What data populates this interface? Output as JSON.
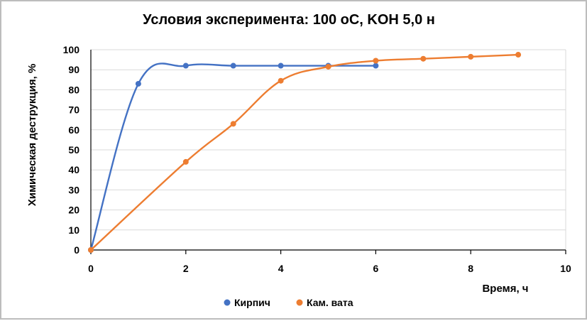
{
  "chart_data": {
    "type": "line",
    "title": "Условия эксперимента: 100 oC, KOH 5,0 н",
    "xlabel": "Время, ч",
    "ylabel": "Химическая деструкция, %",
    "xlim": [
      0,
      10
    ],
    "ylim": [
      0,
      100
    ],
    "xticks": [
      "0",
      "2",
      "4",
      "6",
      "8",
      "10"
    ],
    "yticks": [
      "0",
      "10",
      "20",
      "30",
      "40",
      "50",
      "60",
      "70",
      "80",
      "90",
      "100"
    ],
    "grid": "horizontal",
    "legend_position": "bottom",
    "smooth": true,
    "series": [
      {
        "name": "Кирпич",
        "color": "#4472C4",
        "x": [
          0,
          1,
          2,
          3,
          4,
          5,
          6
        ],
        "y": [
          0,
          83,
          92,
          92,
          92,
          92,
          92
        ]
      },
      {
        "name": "Кам. вата",
        "color": "#ED7D31",
        "x": [
          0,
          2,
          3,
          4,
          5,
          6,
          7,
          8,
          9
        ],
        "y": [
          0,
          44,
          63,
          84.5,
          91.5,
          94.5,
          95.5,
          96.5,
          97.5
        ]
      }
    ]
  }
}
